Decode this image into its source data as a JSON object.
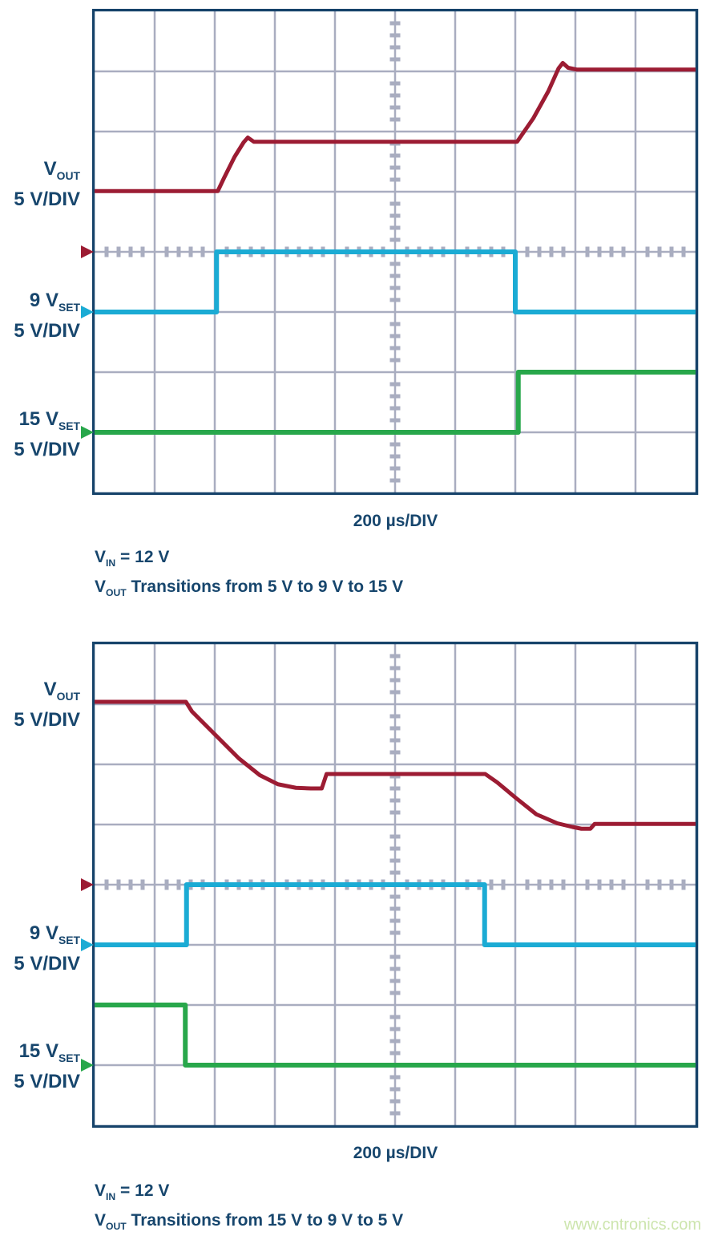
{
  "watermark": {
    "text": "www.cntronics.com",
    "color": "#cde5ae"
  },
  "styles": {
    "background": "#ffffff",
    "grid_line_color": "#a9adc0",
    "grid_border_color": "#16436a",
    "text_color": "#17466d",
    "trace_vout_color": "#9c1c33",
    "trace_9vset_color": "#1babd4",
    "trace_15vset_color": "#28a74b"
  },
  "charts": [
    {
      "time_label": "200 µs/DIV",
      "caption": {
        "line1_parts": [
          {
            "t": "V"
          },
          {
            "s": "IN"
          },
          {
            "t": " = 12 V"
          }
        ],
        "line2_parts": [
          {
            "t": "V"
          },
          {
            "s": "OUT"
          },
          {
            "t": " Transitions from 5 V to 9 V to 15 V"
          }
        ]
      },
      "channels": [
        {
          "label_parts": [
            {
              "t": "V"
            },
            {
              "s": "OUT"
            }
          ],
          "label2": "5 V/DIV"
        },
        {
          "label_parts": [
            {
              "t": "9 V"
            },
            {
              "s": "SET"
            }
          ],
          "label2": "5 V/DIV"
        },
        {
          "label_parts": [
            {
              "t": "15 V"
            },
            {
              "s": "SET"
            }
          ],
          "label2": "5 V/DIV"
        }
      ]
    },
    {
      "time_label": "200 µs/DIV",
      "caption": {
        "line1_parts": [
          {
            "t": "V"
          },
          {
            "s": "IN"
          },
          {
            "t": " = 12 V"
          }
        ],
        "line2_parts": [
          {
            "t": "V"
          },
          {
            "s": "OUT"
          },
          {
            "t": " Transitions from 15 V to 9 V to 5 V"
          }
        ]
      },
      "channels": [
        {
          "label_parts": [
            {
              "t": "V"
            },
            {
              "s": "OUT"
            }
          ],
          "label2": "5 V/DIV"
        },
        {
          "label_parts": [
            {
              "t": "9 V"
            },
            {
              "s": "SET"
            }
          ],
          "label2": "5 V/DIV"
        },
        {
          "label_parts": [
            {
              "t": "15 V"
            },
            {
              "s": "SET"
            }
          ],
          "label2": "5 V/DIV"
        }
      ]
    }
  ],
  "chart_data": [
    {
      "type": "line",
      "title": "VOUT Transitions from 5 V to 9 V to 15 V",
      "xlabel": "200 µs/DIV",
      "x_unit": "divisions of 200 µs",
      "x_range_div": [
        0,
        10
      ],
      "y_unit": "volts",
      "volts_per_div": 5,
      "grid": {
        "x_divisions": 10,
        "y_divisions": 8,
        "minor_ticks_per_div": 5
      },
      "annotations": [
        "VIN = 12 V"
      ],
      "series": [
        {
          "name": "VOUT",
          "scale": "5 V/DIV",
          "color": "#9c1c33",
          "zero_div": 4.0,
          "points": [
            [
              0,
              5.05
            ],
            [
              2.05,
              5.05
            ],
            [
              2.15,
              6.1
            ],
            [
              2.33,
              7.9
            ],
            [
              2.48,
              9.1
            ],
            [
              2.55,
              9.5
            ],
            [
              2.65,
              9.15
            ],
            [
              7.03,
              9.15
            ],
            [
              7.3,
              11.1
            ],
            [
              7.55,
              13.35
            ],
            [
              7.72,
              15.25
            ],
            [
              7.79,
              15.7
            ],
            [
              7.88,
              15.3
            ],
            [
              8.02,
              15.15
            ],
            [
              10,
              15.15
            ]
          ]
        },
        {
          "name": "9 VSET",
          "scale": "5 V/DIV",
          "color": "#1babd4",
          "zero_div": 5.0,
          "points": [
            [
              0,
              0
            ],
            [
              2.03,
              0
            ],
            [
              2.03,
              5
            ],
            [
              7.0,
              5
            ],
            [
              7.0,
              0
            ],
            [
              10,
              0
            ]
          ]
        },
        {
          "name": "15 VSET",
          "scale": "5 V/DIV",
          "color": "#28a74b",
          "zero_div": 7.0,
          "points": [
            [
              0,
              0
            ],
            [
              7.05,
              0
            ],
            [
              7.05,
              5
            ],
            [
              10,
              5
            ]
          ]
        }
      ]
    },
    {
      "type": "line",
      "title": "VOUT Transitions from 15 V to 9 V to 5 V",
      "xlabel": "200 µs/DIV",
      "x_unit": "divisions of 200 µs",
      "x_range_div": [
        0,
        10
      ],
      "y_unit": "volts",
      "volts_per_div": 5,
      "grid": {
        "x_divisions": 10,
        "y_divisions": 8,
        "minor_ticks_per_div": 5
      },
      "annotations": [
        "VIN = 12 V"
      ],
      "series": [
        {
          "name": "VOUT",
          "scale": "5 V/DIV",
          "color": "#9c1c33",
          "zero_div": 4.0,
          "points": [
            [
              0,
              15.2
            ],
            [
              1.52,
              15.2
            ],
            [
              1.62,
              14.4
            ],
            [
              2.0,
              12.5
            ],
            [
              2.4,
              10.5
            ],
            [
              2.75,
              9.1
            ],
            [
              3.05,
              8.35
            ],
            [
              3.35,
              8.05
            ],
            [
              3.6,
              8.0
            ],
            [
              3.78,
              8.0
            ],
            [
              3.82,
              8.6
            ],
            [
              3.86,
              9.2
            ],
            [
              6.5,
              9.2
            ],
            [
              6.7,
              8.5
            ],
            [
              7.0,
              7.25
            ],
            [
              7.35,
              5.85
            ],
            [
              7.7,
              5.1
            ],
            [
              7.95,
              4.8
            ],
            [
              8.1,
              4.65
            ],
            [
              8.25,
              4.65
            ],
            [
              8.32,
              5.05
            ],
            [
              10,
              5.05
            ]
          ]
        },
        {
          "name": "9 VSET",
          "scale": "5 V/DIV",
          "color": "#1babd4",
          "zero_div": 5.0,
          "points": [
            [
              0,
              0
            ],
            [
              1.53,
              0
            ],
            [
              1.53,
              5
            ],
            [
              6.49,
              5
            ],
            [
              6.49,
              0
            ],
            [
              10,
              0
            ]
          ]
        },
        {
          "name": "15 VSET",
          "scale": "5 V/DIV",
          "color": "#28a74b",
          "zero_div": 7.0,
          "points": [
            [
              0,
              5
            ],
            [
              1.51,
              5
            ],
            [
              1.51,
              0
            ],
            [
              10,
              0
            ]
          ]
        }
      ]
    }
  ]
}
